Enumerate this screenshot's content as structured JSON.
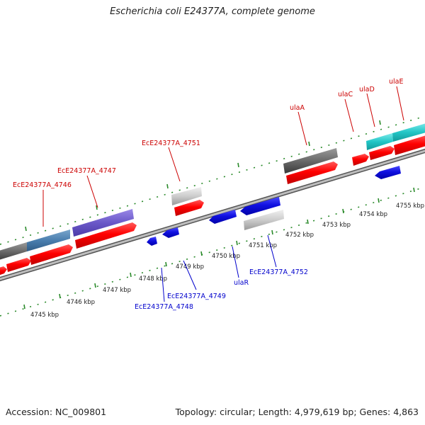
{
  "title": "Escherichia coli E24377A, complete genome",
  "footer": {
    "accession": "Accession: NC_009801",
    "summary": "Topology: circular; Length: 4,979,619 bp; Genes: 4,863"
  },
  "colors": {
    "forward_label": "#cc0000",
    "reverse_label": "#0000cc",
    "tick": "#2a8a2a",
    "backbone": "#999999",
    "cds": "#ff0000",
    "reverse_gene": "#1010e0"
  },
  "scale": {
    "labels": [
      "4745 kbp",
      "4746 kbp",
      "4747 kbp",
      "4748 kbp",
      "4749 kbp",
      "4750 kbp",
      "4751 kbp",
      "4752 kbp",
      "4753 kbp",
      "4754 kbp",
      "4755 kbp"
    ]
  },
  "forward_genes": [
    {
      "label": "EcE24377A_4746"
    },
    {
      "label": "EcE24377A_4747"
    },
    {
      "label": "EcE24377A_4751"
    },
    {
      "label": "ulaA"
    },
    {
      "label": "ulaC"
    },
    {
      "label": "ulaD"
    },
    {
      "label": "ulaE"
    }
  ],
  "reverse_genes": [
    {
      "label": "EcE24377A_4748"
    },
    {
      "label": "EcE24377A_4749"
    },
    {
      "label": "ulaR"
    },
    {
      "label": "EcE24377A_4752"
    }
  ]
}
